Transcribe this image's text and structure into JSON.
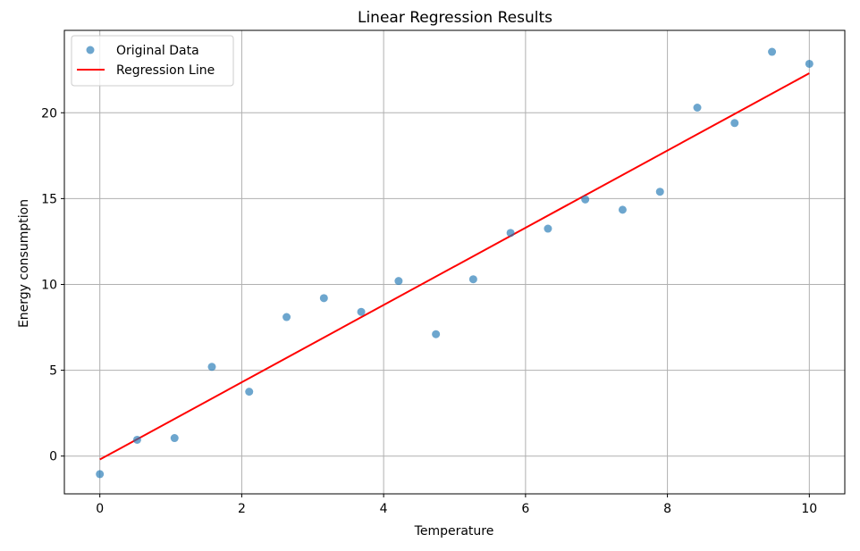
{
  "chart_data": {
    "type": "scatter",
    "title": "Linear Regression Results",
    "xlabel": "Temperature",
    "ylabel": "Energy consumption",
    "xlim": [
      -0.5,
      10.5
    ],
    "ylim": [
      -2.2,
      24.8
    ],
    "xticks": [
      0,
      2,
      4,
      6,
      8,
      10
    ],
    "xtick_labels": [
      "0",
      "2",
      "4",
      "6",
      "8",
      "10"
    ],
    "yticks": [
      0,
      5,
      10,
      15,
      20
    ],
    "ytick_labels": [
      "0",
      "5",
      "10",
      "15",
      "20"
    ],
    "grid": true,
    "legend_position": "top-left",
    "series": [
      {
        "name": "Original Data",
        "kind": "scatter",
        "color": "#1f77b4",
        "x": [
          0,
          0.526,
          1.053,
          1.579,
          2.105,
          2.632,
          3.158,
          3.684,
          4.211,
          4.737,
          5.263,
          5.789,
          6.316,
          6.842,
          7.368,
          7.895,
          8.421,
          8.947,
          9.474,
          10
        ],
        "y": [
          -1.05,
          0.95,
          1.05,
          5.2,
          3.75,
          8.1,
          9.2,
          8.4,
          10.2,
          7.1,
          10.3,
          13.0,
          13.25,
          14.95,
          14.35,
          15.4,
          20.3,
          19.4,
          23.55,
          22.85
        ]
      },
      {
        "name": "Regression Line",
        "kind": "line",
        "color": "#ff0000",
        "x": [
          0,
          10
        ],
        "y": [
          -0.2,
          22.3
        ]
      }
    ]
  }
}
